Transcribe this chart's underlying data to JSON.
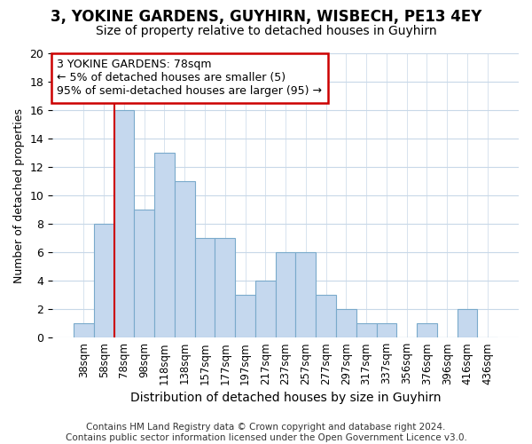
{
  "title": "3, YOKINE GARDENS, GUYHIRN, WISBECH, PE13 4EY",
  "subtitle": "Size of property relative to detached houses in Guyhirn",
  "xlabel": "Distribution of detached houses by size in Guyhirn",
  "ylabel": "Number of detached properties",
  "categories": [
    "38sqm",
    "58sqm",
    "78sqm",
    "98sqm",
    "118sqm",
    "138sqm",
    "157sqm",
    "177sqm",
    "197sqm",
    "217sqm",
    "237sqm",
    "257sqm",
    "277sqm",
    "297sqm",
    "317sqm",
    "337sqm",
    "356sqm",
    "376sqm",
    "396sqm",
    "416sqm",
    "436sqm"
  ],
  "values": [
    1,
    8,
    16,
    9,
    13,
    11,
    7,
    7,
    3,
    4,
    6,
    6,
    3,
    2,
    1,
    1,
    0,
    1,
    0,
    2,
    0
  ],
  "bar_color": "#c5d8ee",
  "bar_edge_color": "#7aaacb",
  "highlight_bar_index": 2,
  "highlight_line_color": "#cc0000",
  "ylim": [
    0,
    20
  ],
  "yticks": [
    0,
    2,
    4,
    6,
    8,
    10,
    12,
    14,
    16,
    18,
    20
  ],
  "annotation_line1": "3 YOKINE GARDENS: 78sqm",
  "annotation_line2": "← 5% of detached houses are smaller (5)",
  "annotation_line3": "95% of semi-detached houses are larger (95) →",
  "footer_text": "Contains HM Land Registry data © Crown copyright and database right 2024.\nContains public sector information licensed under the Open Government Licence v3.0.",
  "background_color": "#ffffff",
  "plot_background_color": "#ffffff",
  "grid_color": "#c8d8e8",
  "title_fontsize": 12,
  "subtitle_fontsize": 10,
  "tick_label_fontsize": 8.5,
  "ylabel_fontsize": 9,
  "xlabel_fontsize": 10,
  "footer_fontsize": 7.5
}
